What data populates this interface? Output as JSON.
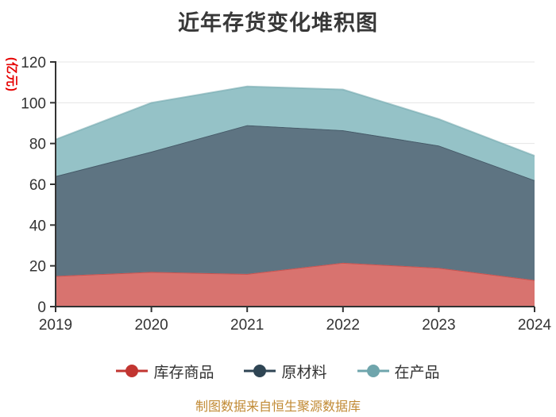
{
  "title": "近年存货变化堆积图",
  "y_axis_name": "(亿元)",
  "footer": "制图数据来自恒生聚源数据库",
  "colors": {
    "title": "#383838",
    "y_axis_name": "#e60000",
    "axis": "#333333",
    "tick_label": "#333333",
    "grid": "#e5e5e5",
    "footer": "#c18a34",
    "background": "#ffffff"
  },
  "chart_data": {
    "type": "area",
    "stacked": true,
    "title": "近年存货变化堆积图",
    "categories": [
      "2019",
      "2020",
      "2021",
      "2022",
      "2023",
      "2024"
    ],
    "series": [
      {
        "key": "stock-goods",
        "name": "库存商品",
        "values": [
          15,
          17,
          16,
          21.5,
          19,
          13
        ],
        "fill": "#d8736f",
        "line": "#c23531"
      },
      {
        "key": "raw-materials",
        "name": "原材料",
        "values": [
          49,
          59,
          73,
          65,
          60,
          49
        ],
        "fill": "#5e7482",
        "line": "#2f4554"
      },
      {
        "key": "work-in-progress",
        "name": "在产品",
        "values": [
          18,
          24,
          19,
          20,
          13,
          12
        ],
        "fill": "#95c2c7",
        "line": "#6fa5ac"
      }
    ],
    "xlabel": "",
    "ylabel": "(亿元)",
    "ylim": [
      0,
      120
    ],
    "y_ticks": [
      0,
      20,
      40,
      60,
      80,
      100,
      120
    ],
    "grid": true,
    "legend_position": "bottom",
    "source_note": "制图数据来自恒生聚源数据库"
  }
}
